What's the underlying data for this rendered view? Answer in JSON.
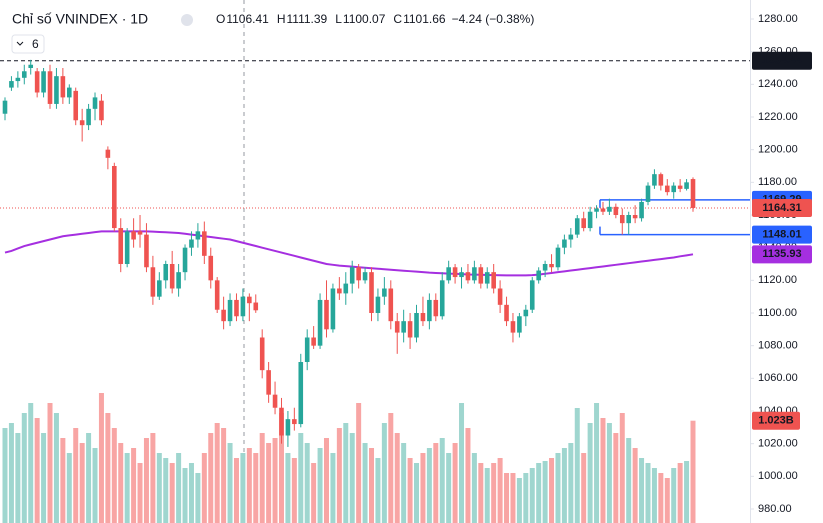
{
  "chart_data": {
    "type": "candlestick",
    "title": "Chỉ số VNINDEX · 1D",
    "indicator_count": "6",
    "ohlc_labels": [
      "O",
      "H",
      "L",
      "C"
    ],
    "ohlc_values": [
      1106.41,
      1111.39,
      1100.07,
      1101.66
    ],
    "change_label": "−4.24 (−0.38%)",
    "up_color": "#26a69a",
    "down_color": "#ef5350",
    "volume_up_color": "#9fd6cf",
    "volume_down_color": "#f8a5a4",
    "ma_color": "#a52fe0",
    "ylim": [
      980,
      1280
    ],
    "yticks": [
      {
        "value": 980,
        "label": "980.00"
      },
      {
        "value": 1000,
        "label": "1000.00"
      },
      {
        "value": 1020,
        "label": "1020.00"
      },
      {
        "value": 1040,
        "label": "1040.00"
      },
      {
        "value": 1060,
        "label": "1060.00"
      },
      {
        "value": 1080,
        "label": "1080.00"
      },
      {
        "value": 1100,
        "label": "1100.00"
      },
      {
        "value": 1120,
        "label": "1120.00"
      },
      {
        "value": 1140,
        "label": "1140.00"
      },
      {
        "value": 1160,
        "label": "1160.00"
      },
      {
        "value": 1180,
        "label": "1180.00"
      },
      {
        "value": 1200,
        "label": "1200.00"
      },
      {
        "value": 1220,
        "label": "1220.00"
      },
      {
        "value": 1240,
        "label": "1240.00"
      },
      {
        "value": 1260,
        "label": "1260.00"
      },
      {
        "value": 1280,
        "label": "1280.00"
      }
    ],
    "candles": [
      [
        1222,
        1232,
        1218,
        1230
      ],
      [
        1238,
        1245,
        1236,
        1242
      ],
      [
        1242,
        1248,
        1238,
        1244
      ],
      [
        1244,
        1252,
        1240,
        1248
      ],
      [
        1250,
        1255,
        1246,
        1252
      ],
      [
        1248,
        1250,
        1232,
        1235
      ],
      [
        1235,
        1250,
        1232,
        1248
      ],
      [
        1248,
        1252,
        1225,
        1228
      ],
      [
        1228,
        1250,
        1225,
        1245
      ],
      [
        1245,
        1250,
        1228,
        1232
      ],
      [
        1232,
        1240,
        1228,
        1238
      ],
      [
        1236,
        1238,
        1215,
        1218
      ],
      [
        1218,
        1225,
        1205,
        1215
      ],
      [
        1215,
        1228,
        1212,
        1225
      ],
      [
        1225,
        1235,
        1218,
        1232
      ],
      [
        1230,
        1234,
        1215,
        1218
      ],
      [
        1200,
        1202,
        1188,
        1195
      ],
      [
        1190,
        1192,
        1150,
        1152
      ],
      [
        1152,
        1158,
        1125,
        1130
      ],
      [
        1130,
        1152,
        1128,
        1150
      ],
      [
        1150,
        1158,
        1140,
        1145
      ],
      [
        1150,
        1160,
        1140,
        1148
      ],
      [
        1148,
        1155,
        1125,
        1128
      ],
      [
        1128,
        1135,
        1105,
        1110
      ],
      [
        1110,
        1125,
        1108,
        1120
      ],
      [
        1120,
        1132,
        1115,
        1130
      ],
      [
        1130,
        1138,
        1112,
        1115
      ],
      [
        1115,
        1130,
        1110,
        1125
      ],
      [
        1125,
        1142,
        1120,
        1140
      ],
      [
        1140,
        1150,
        1135,
        1145
      ],
      [
        1145,
        1155,
        1140,
        1150
      ],
      [
        1150,
        1156,
        1130,
        1135
      ],
      [
        1135,
        1140,
        1115,
        1120
      ],
      [
        1120,
        1122,
        1100,
        1102
      ],
      [
        1102,
        1110,
        1090,
        1095
      ],
      [
        1095,
        1112,
        1092,
        1108
      ],
      [
        1108,
        1112,
        1095,
        1098
      ],
      [
        1098,
        1115,
        1095,
        1110
      ],
      [
        1110,
        1112,
        1095,
        1106
      ],
      [
        1106.41,
        1111.39,
        1100.07,
        1101.66
      ],
      [
        1085,
        1090,
        1060,
        1065
      ],
      [
        1065,
        1070,
        1045,
        1050
      ],
      [
        1050,
        1058,
        1038,
        1042
      ],
      [
        1042,
        1048,
        1020,
        1025
      ],
      [
        1025,
        1040,
        1018,
        1035
      ],
      [
        1035,
        1042,
        1028,
        1032
      ],
      [
        1032,
        1075,
        1030,
        1070
      ],
      [
        1070,
        1090,
        1065,
        1085
      ],
      [
        1085,
        1092,
        1078,
        1080
      ],
      [
        1080,
        1112,
        1078,
        1108
      ],
      [
        1108,
        1120,
        1085,
        1090
      ],
      [
        1090,
        1118,
        1088,
        1115
      ],
      [
        1115,
        1122,
        1108,
        1112
      ],
      [
        1112,
        1125,
        1105,
        1118
      ],
      [
        1118,
        1132,
        1112,
        1128
      ],
      [
        1128,
        1130,
        1115,
        1120
      ],
      [
        1120,
        1128,
        1118,
        1125
      ],
      [
        1125,
        1128,
        1095,
        1100
      ],
      [
        1100,
        1115,
        1095,
        1110
      ],
      [
        1110,
        1122,
        1105,
        1115
      ],
      [
        1115,
        1120,
        1090,
        1095
      ],
      [
        1095,
        1100,
        1075,
        1088
      ],
      [
        1088,
        1102,
        1082,
        1095
      ],
      [
        1095,
        1100,
        1078,
        1085
      ],
      [
        1085,
        1105,
        1082,
        1100
      ],
      [
        1100,
        1110,
        1092,
        1095
      ],
      [
        1095,
        1112,
        1090,
        1108
      ],
      [
        1108,
        1112,
        1095,
        1098
      ],
      [
        1098,
        1125,
        1096,
        1120
      ],
      [
        1120,
        1132,
        1118,
        1128
      ],
      [
        1128,
        1130,
        1118,
        1122
      ],
      [
        1122,
        1128,
        1115,
        1125
      ],
      [
        1125,
        1130,
        1118,
        1120
      ],
      [
        1120,
        1132,
        1118,
        1128
      ],
      [
        1128,
        1130,
        1115,
        1118
      ],
      [
        1118,
        1128,
        1115,
        1125
      ],
      [
        1125,
        1130,
        1112,
        1115
      ],
      [
        1115,
        1120,
        1100,
        1105
      ],
      [
        1105,
        1110,
        1092,
        1095
      ],
      [
        1095,
        1100,
        1082,
        1088
      ],
      [
        1088,
        1100,
        1085,
        1098
      ],
      [
        1098,
        1105,
        1092,
        1102
      ],
      [
        1102,
        1122,
        1100,
        1120
      ],
      [
        1120,
        1128,
        1118,
        1126
      ],
      [
        1126,
        1132,
        1122,
        1130
      ],
      [
        1130,
        1136,
        1125,
        1128
      ],
      [
        1128,
        1142,
        1126,
        1140
      ],
      [
        1140,
        1148,
        1136,
        1145
      ],
      [
        1145,
        1152,
        1140,
        1148
      ],
      [
        1148,
        1160,
        1146,
        1158
      ],
      [
        1158,
        1162,
        1150,
        1152
      ],
      [
        1152,
        1165,
        1150,
        1162
      ],
      [
        1162,
        1166,
        1158,
        1164
      ],
      [
        1164,
        1168,
        1160,
        1162
      ],
      [
        1162,
        1170,
        1160,
        1165
      ],
      [
        1165,
        1167,
        1158,
        1160
      ],
      [
        1160,
        1164,
        1148,
        1155
      ],
      [
        1155,
        1162,
        1148,
        1160
      ],
      [
        1160,
        1166,
        1155,
        1158
      ],
      [
        1158,
        1170,
        1156,
        1168
      ],
      [
        1168,
        1180,
        1166,
        1178
      ],
      [
        1178,
        1188,
        1176,
        1185
      ],
      [
        1185,
        1186,
        1175,
        1178
      ],
      [
        1178,
        1182,
        1172,
        1174
      ],
      [
        1174,
        1180,
        1170,
        1178
      ],
      [
        1178,
        1182,
        1174,
        1176
      ],
      [
        1176,
        1182,
        1175,
        1180
      ],
      [
        1182,
        1183,
        1162,
        1164.31
      ]
    ],
    "volumes": [
      0.95,
      1.0,
      0.9,
      1.1,
      1.2,
      1.05,
      0.9,
      1.2,
      1.1,
      0.85,
      0.7,
      0.95,
      0.8,
      0.9,
      0.75,
      1.3,
      1.1,
      0.95,
      0.8,
      0.7,
      0.75,
      0.6,
      0.85,
      0.9,
      0.7,
      0.65,
      0.6,
      0.7,
      0.55,
      0.6,
      0.5,
      0.7,
      0.9,
      1.0,
      0.95,
      0.8,
      0.65,
      0.7,
      0.75,
      0.7,
      0.9,
      0.8,
      0.85,
      1.1,
      0.7,
      0.65,
      0.9,
      0.8,
      0.6,
      0.75,
      0.85,
      0.7,
      0.95,
      1.0,
      0.9,
      1.2,
      0.8,
      0.75,
      0.65,
      1.0,
      1.1,
      0.9,
      0.8,
      0.65,
      0.6,
      0.7,
      0.75,
      0.8,
      0.85,
      0.7,
      0.8,
      1.2,
      0.95,
      0.7,
      0.6,
      0.55,
      0.6,
      0.65,
      0.5,
      0.5,
      0.45,
      0.5,
      0.55,
      0.6,
      0.62,
      0.65,
      0.7,
      0.75,
      0.8,
      1.15,
      0.7,
      1.0,
      1.2,
      1.05,
      1.0,
      0.9,
      1.1,
      0.85,
      0.75,
      0.65,
      0.6,
      0.55,
      0.5,
      0.45,
      0.55,
      0.6,
      0.62,
      1.023
    ],
    "ma": [
      1137,
      1138,
      1139.5,
      1141,
      1142,
      1143,
      1144,
      1145,
      1146,
      1147,
      1147.5,
      1148,
      1148.5,
      1149,
      1149.5,
      1150,
      1150,
      1150,
      1150,
      1150,
      1150,
      1150,
      1150,
      1149.8,
      1149.6,
      1149.4,
      1149.2,
      1149,
      1148.5,
      1148,
      1147.5,
      1147,
      1146.5,
      1146,
      1145.5,
      1145,
      1144,
      1143,
      1142,
      1141,
      1140,
      1139,
      1138,
      1137,
      1136,
      1135,
      1134,
      1133,
      1132,
      1131,
      1130,
      1129.5,
      1129,
      1128.7,
      1128.4,
      1128,
      1127.7,
      1127.4,
      1127.1,
      1126.8,
      1126.5,
      1126.2,
      1125.9,
      1125.6,
      1125.3,
      1125,
      1124.7,
      1124.5,
      1124.3,
      1124.1,
      1124,
      1123.8,
      1123.6,
      1123.5,
      1123.4,
      1123.3,
      1123.2,
      1123.1,
      1123,
      1123,
      1123,
      1123,
      1123.2,
      1123.5,
      1124,
      1124.5,
      1125,
      1125.5,
      1126,
      1126.5,
      1127,
      1127.5,
      1128,
      1128.5,
      1129,
      1129.5,
      1130,
      1130.5,
      1131,
      1131.5,
      1132,
      1132.5,
      1133,
      1133.5,
      1134,
      1134.7,
      1135.3,
      1135.93
    ],
    "price_labels": [
      {
        "value": 1254.44,
        "color": "#131722",
        "line": "dashed"
      },
      {
        "value": 1169.29,
        "color": "#2962ff",
        "line": "segment"
      },
      {
        "value": 1164.31,
        "color": "#ef5350",
        "line": "dotted"
      },
      {
        "value": 1148.01,
        "color": "#2962ff",
        "line": "segment"
      },
      {
        "value": 1135.93,
        "color": "#a52fe0",
        "line": "none"
      }
    ],
    "volume_label": {
      "value": 1.023,
      "label": "1.023B",
      "color": "#ef5350"
    }
  }
}
